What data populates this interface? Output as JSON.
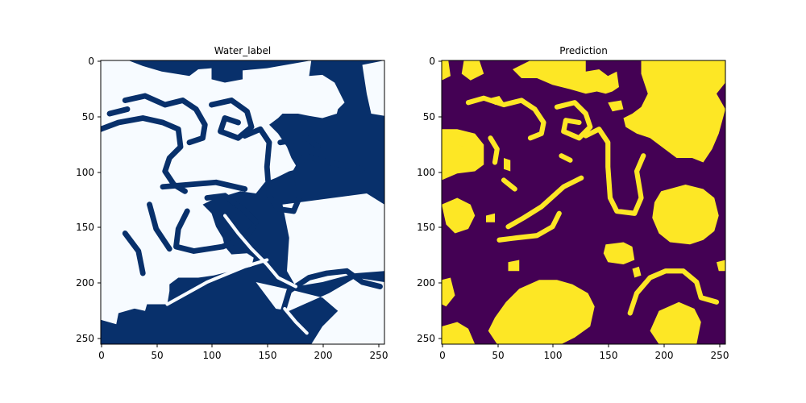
{
  "chart_data": [
    {
      "type": "heatmap",
      "title": "Water_label",
      "xlabel": "",
      "ylabel": "",
      "xlim": [
        0,
        256
      ],
      "ylim": [
        256,
        0
      ],
      "x_ticks": [
        "0",
        "50",
        "100",
        "150",
        "200",
        "250"
      ],
      "y_ticks": [
        "0",
        "50",
        "100",
        "150",
        "200",
        "250"
      ],
      "grid": false,
      "colormap": "Blues",
      "colors": {
        "water": "#08306b",
        "land": "#f7fbff"
      }
    },
    {
      "type": "heatmap",
      "title": "Prediction",
      "xlabel": "",
      "ylabel": "",
      "xlim": [
        0,
        256
      ],
      "ylim": [
        256,
        0
      ],
      "x_ticks": [
        "0",
        "50",
        "100",
        "150",
        "200",
        "250"
      ],
      "y_ticks": [
        "0",
        "50",
        "100",
        "150",
        "200",
        "250"
      ],
      "grid": false,
      "colormap": "viridis",
      "colors": {
        "water": "#440154",
        "land": "#fde725"
      }
    }
  ]
}
